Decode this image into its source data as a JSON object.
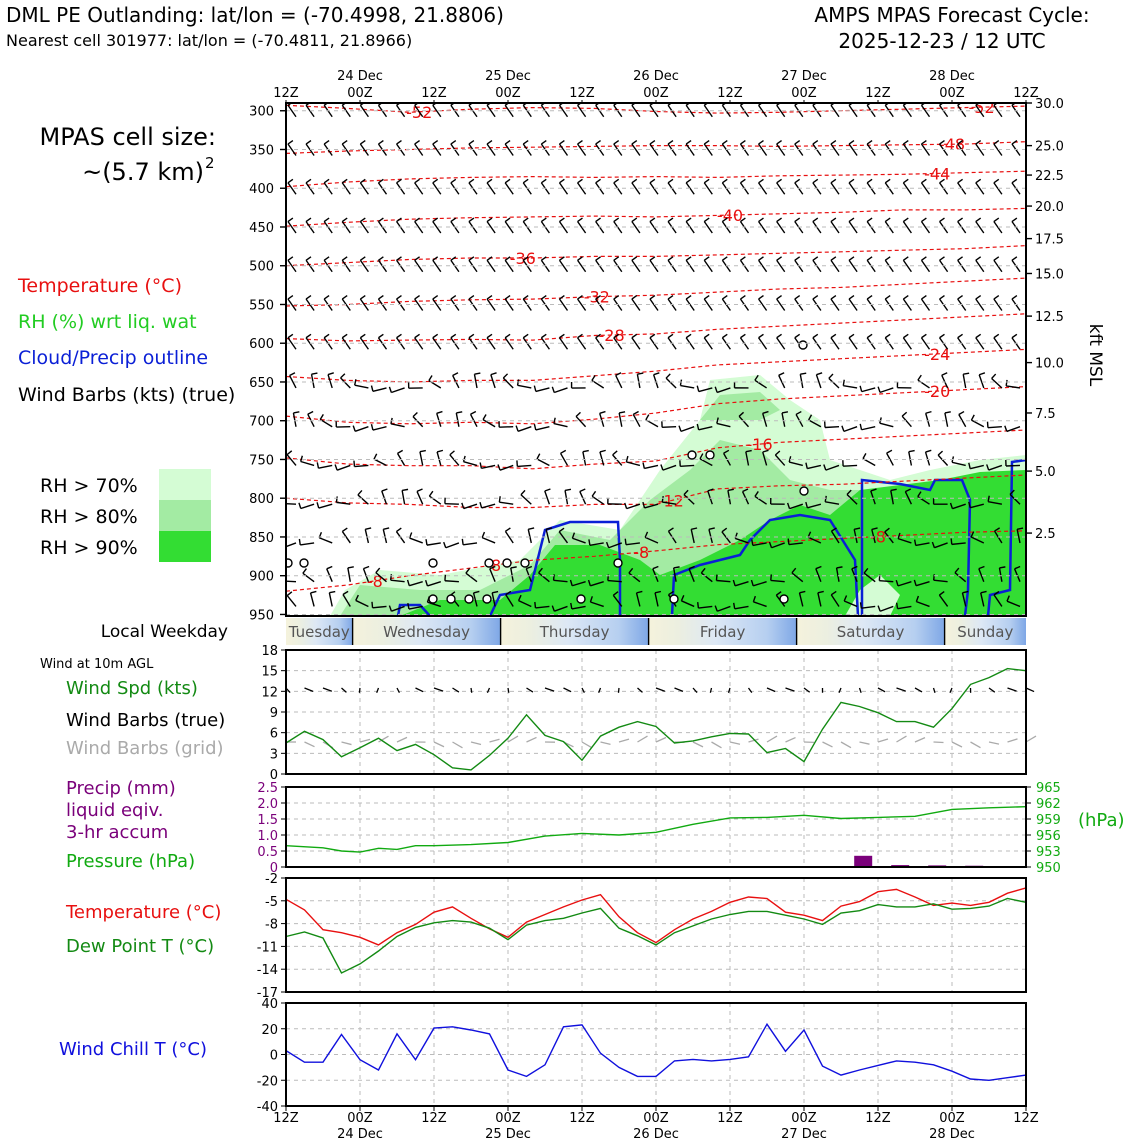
{
  "header": {
    "station_title": "DML PE Outlanding: lat/lon = (-70.4998, 21.8806)",
    "nearest_cell": "Nearest cell 301977: lat/lon = (-70.4811, 21.8966)",
    "cycle_line1": "AMPS MPAS Forecast Cycle:",
    "cycle_line2": "2025-12-23 / 12 UTC"
  },
  "left_panel": {
    "cell_size_line1": "MPAS cell size:",
    "cell_size_line2": "~(5.7 km)",
    "cell_size_exp": "2",
    "legend_temperature": "Temperature (°C)",
    "legend_rh": "RH (%) wrt liq. wat",
    "legend_cloud": "Cloud/Precip outline",
    "legend_barbs": "Wind Barbs (kts) (true)",
    "rh_boxes": [
      {
        "label": "RH > 70%",
        "color": "#d4fcd4"
      },
      {
        "label": "RH > 80%",
        "color": "#a3eba3"
      },
      {
        "label": "RH > 90%",
        "color": "#33dd33"
      }
    ]
  },
  "colors": {
    "temperature": "#e81010",
    "rh": "#22cc22",
    "cloud": "#0a1fd6",
    "dewpoint": "#138a13",
    "precip": "#7a007a",
    "pressure": "#11aa11",
    "windchill": "#1010dd",
    "barb_grid": "#aaaaaa"
  },
  "time_axis": {
    "hour_ticks": [
      "12Z",
      "00Z",
      "12Z",
      "00Z",
      "12Z",
      "00Z",
      "12Z",
      "00Z",
      "12Z",
      "00Z",
      "12Z"
    ],
    "date_labels": [
      "24 Dec",
      "25 Dec",
      "26 Dec",
      "27 Dec",
      "28 Dec"
    ]
  },
  "weekday_strip": {
    "label": "Local Weekday",
    "days": [
      "Tuesday",
      "Wednesday",
      "Thursday",
      "Friday",
      "Saturday",
      "Sunday"
    ]
  },
  "chart_data": [
    {
      "type": "contour",
      "name": "cross-section",
      "y_axis_label": "kft MSL",
      "pressure_levels_hpa": [
        300,
        350,
        400,
        450,
        500,
        550,
        600,
        650,
        700,
        750,
        800,
        850,
        900,
        950
      ],
      "height_ticks_kft": [
        "30.0",
        "25.0",
        "22.5",
        "20.0",
        "17.5",
        "15.0",
        "12.5",
        "10.0",
        "7.5",
        "5.0",
        "2.5"
      ],
      "height_tick_pressure": [
        290,
        345,
        383,
        423,
        465,
        510,
        565,
        625,
        690,
        765,
        845
      ],
      "temperature_contours": [
        {
          "label": "-52",
          "p": [
            293,
            297,
            302,
            298,
            296,
            297,
            301,
            303,
            302,
            300,
            298,
            296,
            294
          ]
        },
        {
          "label": "-48",
          "p": [
            355,
            352,
            350,
            348,
            347,
            346,
            345,
            345,
            346,
            345,
            344,
            343,
            340
          ]
        },
        {
          "label": "-44",
          "p": [
            398,
            392,
            388,
            386,
            385,
            386,
            385,
            386,
            384,
            383,
            382,
            380,
            378
          ]
        },
        {
          "label": "-40",
          "p": [
            449,
            444,
            440,
            438,
            437,
            436,
            437,
            435,
            433,
            431,
            428,
            428,
            426
          ]
        },
        {
          "label": "-36",
          "p": [
            500,
            496,
            492,
            490,
            490,
            488,
            488,
            486,
            484,
            482,
            480,
            478,
            474
          ]
        },
        {
          "label": "-32",
          "p": [
            552,
            550,
            546,
            544,
            543,
            540,
            538,
            534,
            530,
            528,
            524,
            520,
            516
          ]
        },
        {
          "label": "-28",
          "p": [
            594,
            597,
            596,
            595,
            596,
            590,
            588,
            582,
            578,
            574,
            570,
            566,
            562
          ]
        },
        {
          "label": "-24",
          "p": [
            643,
            648,
            650,
            648,
            648,
            642,
            636,
            628,
            624,
            620,
            616,
            612,
            608
          ]
        },
        {
          "label": "-20",
          "p": [
            694,
            702,
            704,
            702,
            704,
            698,
            690,
            678,
            672,
            668,
            664,
            660,
            656
          ]
        },
        {
          "label": "-16",
          "p": [
            748,
            756,
            758,
            758,
            762,
            756,
            752,
            735,
            728,
            724,
            720,
            716,
            712
          ]
        },
        {
          "label": "-12",
          "p": [
            800,
            806,
            808,
            812,
            812,
            808,
            808,
            788,
            784,
            782,
            778,
            774,
            770
          ]
        },
        {
          "label": "-8",
          "p": [
            920,
            912,
            900,
            890,
            880,
            875,
            868,
            860,
            856,
            852,
            848,
            844,
            842
          ]
        }
      ],
      "contour_label_positions": [
        {
          "label": "-52",
          "day": 0.9
        },
        {
          "label": "-52",
          "day": 4.7
        },
        {
          "label": "-48",
          "day": 4.5
        },
        {
          "label": "-44",
          "day": 4.4
        },
        {
          "label": "-40",
          "day": 3.0
        },
        {
          "label": "-36",
          "day": 1.6
        },
        {
          "label": "-32",
          "day": 2.1
        },
        {
          "label": "-28",
          "day": 2.2
        },
        {
          "label": "-24",
          "day": 4.4
        },
        {
          "label": "-20",
          "day": 4.4
        },
        {
          "label": "-16",
          "day": 3.2
        },
        {
          "label": "-12",
          "day": 2.6
        },
        {
          "label": "-8",
          "day": 0.6
        },
        {
          "label": "-8",
          "day": 1.4
        },
        {
          "label": "-8",
          "day": 2.4
        },
        {
          "label": "-8",
          "day": 4.0
        }
      ]
    },
    {
      "type": "line",
      "name": "wind",
      "title": "Wind at 10m AGL",
      "label_speed": "Wind Spd (kts)",
      "label_barbs_true": "Wind Barbs (true)",
      "label_barbs_grid": "Wind Barbs (grid)",
      "x_days": [
        0,
        0.125,
        0.25,
        0.375,
        0.5,
        0.625,
        0.75,
        0.875,
        1,
        1.125,
        1.25,
        1.375,
        1.5,
        1.625,
        1.75,
        1.875,
        2,
        2.125,
        2.25,
        2.375,
        2.5,
        2.625,
        2.75,
        2.875,
        3,
        3.125,
        3.25,
        3.375,
        3.5,
        3.625,
        3.75,
        3.875,
        4,
        4.125,
        4.25,
        4.375,
        4.5,
        4.625,
        4.75,
        4.875,
        5
      ],
      "speed_kts": [
        4.5,
        6.2,
        5,
        2.5,
        3.8,
        5.2,
        3.4,
        4.3,
        2.8,
        0.9,
        0.6,
        2.7,
        5.2,
        8.6,
        5.6,
        4.7,
        2,
        5.5,
        6.8,
        7.6,
        6.9,
        4.5,
        4.8,
        5.4,
        5.9,
        5.8,
        3.1,
        3.7,
        1.8,
        6.5,
        10.4,
        9.8,
        8.9,
        7.6,
        7.6,
        6.8,
        9.5,
        13,
        14,
        15.3,
        15
      ],
      "ylim": [
        0,
        18
      ],
      "yticks": [
        "0",
        "3",
        "6",
        "9",
        "12",
        "15",
        "18"
      ]
    },
    {
      "type": "bar+line",
      "name": "precip-pressure",
      "label_precip_line1": "Precip (mm)",
      "label_precip_line2": "liquid eqiv.",
      "label_precip_line3": "3-hr accum",
      "label_pressure": "Pressure (hPa)",
      "pressure_unit": "(hPa)",
      "precip_yticks": [
        "0",
        "0.5",
        "1.0",
        "1.5",
        "2.0",
        "2.5"
      ],
      "pressure_yticks": [
        "950",
        "953",
        "956",
        "959",
        "962",
        "965"
      ],
      "precip_ylim": [
        0,
        2.5
      ],
      "pressure_ylim": [
        950,
        965
      ],
      "precip_bars": [
        {
          "day": 3.9,
          "mm": 0.35
        },
        {
          "day": 4.15,
          "mm": 0.06
        },
        {
          "day": 4.4,
          "mm": 0.05
        },
        {
          "day": 4.65,
          "mm": 0.04
        }
      ],
      "x_days": [
        0,
        0.25,
        0.375,
        0.5,
        0.625,
        0.75,
        0.875,
        1,
        1.25,
        1.5,
        1.75,
        2,
        2.25,
        2.5,
        2.75,
        3,
        3.25,
        3.5,
        3.75,
        4,
        4.25,
        4.5,
        4.75,
        5
      ],
      "pressure_hpa": [
        954,
        953.6,
        953,
        952.8,
        953.5,
        953.3,
        954,
        954,
        954.2,
        954.6,
        955.8,
        956.3,
        956,
        956.5,
        958,
        959.2,
        959.3,
        959.7,
        959.1,
        959.3,
        959.5,
        960.8,
        961.1,
        961.3
      ]
    },
    {
      "type": "line",
      "name": "temperature-dewpoint",
      "label_temp": "Temperature (°C)",
      "label_dew": "Dew Point T (°C)",
      "ylim": [
        -17,
        -2
      ],
      "yticks": [
        "-2",
        "-5",
        "-8",
        "-11",
        "-14",
        "-17"
      ],
      "x_days": [
        0,
        0.125,
        0.25,
        0.375,
        0.5,
        0.625,
        0.75,
        0.875,
        1,
        1.125,
        1.25,
        1.375,
        1.5,
        1.625,
        1.75,
        1.875,
        2,
        2.125,
        2.25,
        2.375,
        2.5,
        2.625,
        2.75,
        2.875,
        3,
        3.125,
        3.25,
        3.375,
        3.5,
        3.625,
        3.75,
        3.875,
        4,
        4.125,
        4.25,
        4.375,
        4.5,
        4.625,
        4.75,
        4.875,
        5
      ],
      "temperature_c": [
        -4.8,
        -6.2,
        -8.8,
        -9.2,
        -9.8,
        -10.8,
        -9.2,
        -8.1,
        -6.5,
        -5.8,
        -7.3,
        -8.7,
        -9.8,
        -7.8,
        -6.8,
        -5.8,
        -4.9,
        -4.2,
        -7.1,
        -9.2,
        -10.5,
        -8.8,
        -7.4,
        -6.4,
        -5.2,
        -4.5,
        -4.7,
        -6.5,
        -6.9,
        -7.6,
        -5.7,
        -5.1,
        -3.8,
        -3.5,
        -4.5,
        -5.6,
        -5.3,
        -5.6,
        -5.2,
        -4,
        -3.3
      ],
      "dewpoint_c": [
        -9.7,
        -9.1,
        -9.9,
        -14.5,
        -13.3,
        -11.6,
        -9.7,
        -8.5,
        -7.9,
        -7.6,
        -7.8,
        -8.6,
        -10.1,
        -8.2,
        -7.6,
        -7.3,
        -6.6,
        -6,
        -8.6,
        -9.6,
        -10.8,
        -9.2,
        -8.3,
        -7.4,
        -6.8,
        -6.4,
        -6.4,
        -6.9,
        -7.4,
        -8.1,
        -6.6,
        -6.3,
        -5.5,
        -5.8,
        -5.8,
        -5.4,
        -6.1,
        -6,
        -5.7,
        -4.7,
        -5.2
      ]
    },
    {
      "type": "line",
      "name": "wind-chill",
      "label": "Wind Chill T (°C)",
      "ylim": [
        -40,
        40
      ],
      "yticks": [
        "40",
        "20",
        "0",
        "-20",
        "-40"
      ],
      "x_days": [
        0,
        0.125,
        0.25,
        0.375,
        0.5,
        0.625,
        0.75,
        0.875,
        1,
        1.125,
        1.25,
        1.375,
        1.5,
        1.625,
        1.75,
        1.875,
        2,
        2.125,
        2.25,
        2.375,
        2.5,
        2.625,
        2.75,
        2.875,
        3,
        3.125,
        3.25,
        3.375,
        3.5,
        3.625,
        3.75,
        3.875,
        4,
        4.125,
        4.25,
        4.375,
        4.5,
        4.625,
        4.75,
        4.875,
        5
      ],
      "windchill_c": [
        3,
        -6,
        -6,
        15.5,
        -4,
        -12,
        16,
        -4,
        20.5,
        21.5,
        19,
        16,
        -12,
        -17,
        -8,
        21.5,
        23,
        1,
        -10,
        -17,
        -17,
        -5,
        -3.8,
        -5,
        -3.8,
        -1.8,
        23.5,
        2.5,
        19,
        -9,
        -16,
        -12,
        -8.5,
        -5,
        -6,
        -8,
        -13,
        -19,
        -20,
        -18,
        -16
      ]
    }
  ]
}
